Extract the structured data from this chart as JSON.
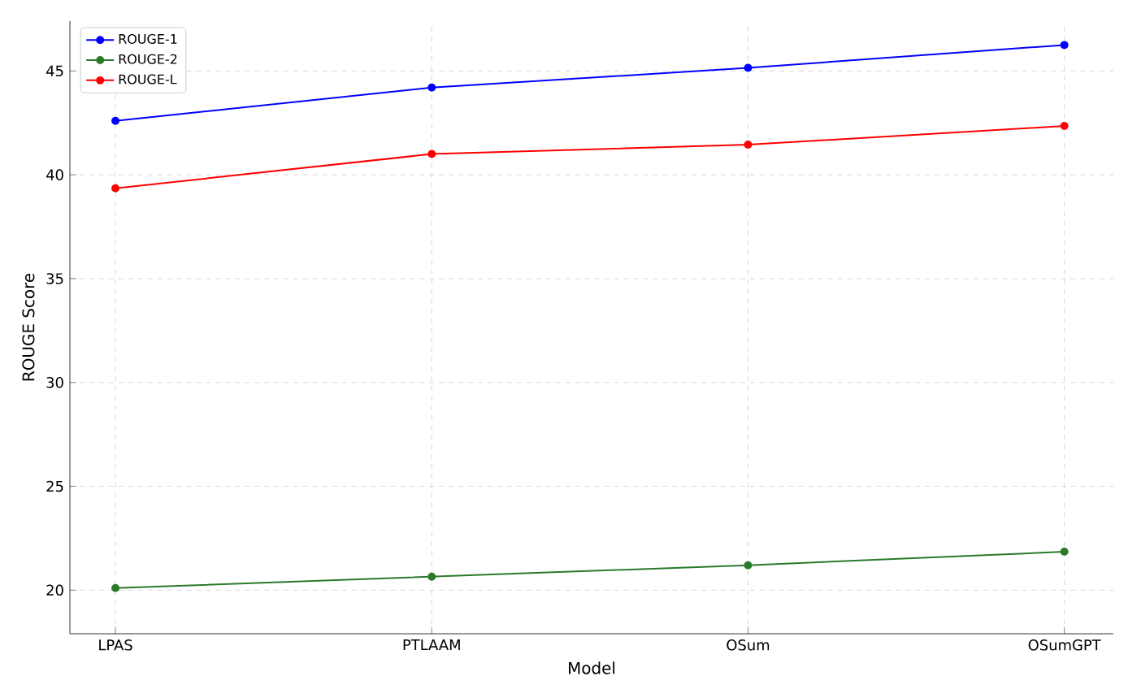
{
  "chart_data": {
    "type": "line",
    "xlabel": "Model",
    "ylabel": "ROUGE Score",
    "categories": [
      "LPAS",
      "PTLAAM",
      "OSum",
      "OSumGPT"
    ],
    "series": [
      {
        "name": "ROUGE-1",
        "color": "#0000ff",
        "values": [
          42.6,
          44.2,
          45.15,
          46.25
        ]
      },
      {
        "name": "ROUGE-2",
        "color": "#2a7a2a",
        "values": [
          20.1,
          20.65,
          21.2,
          21.85
        ]
      },
      {
        "name": "ROUGE-L",
        "color": "#ff0000",
        "values": [
          39.35,
          41.0,
          41.45,
          42.35
        ]
      }
    ],
    "ylim": [
      17.9,
      47.4
    ],
    "yticks": [
      20,
      25,
      30,
      35,
      40,
      45
    ],
    "grid": true,
    "legend": "top left",
    "marker": "circle",
    "line_style": "solid"
  }
}
